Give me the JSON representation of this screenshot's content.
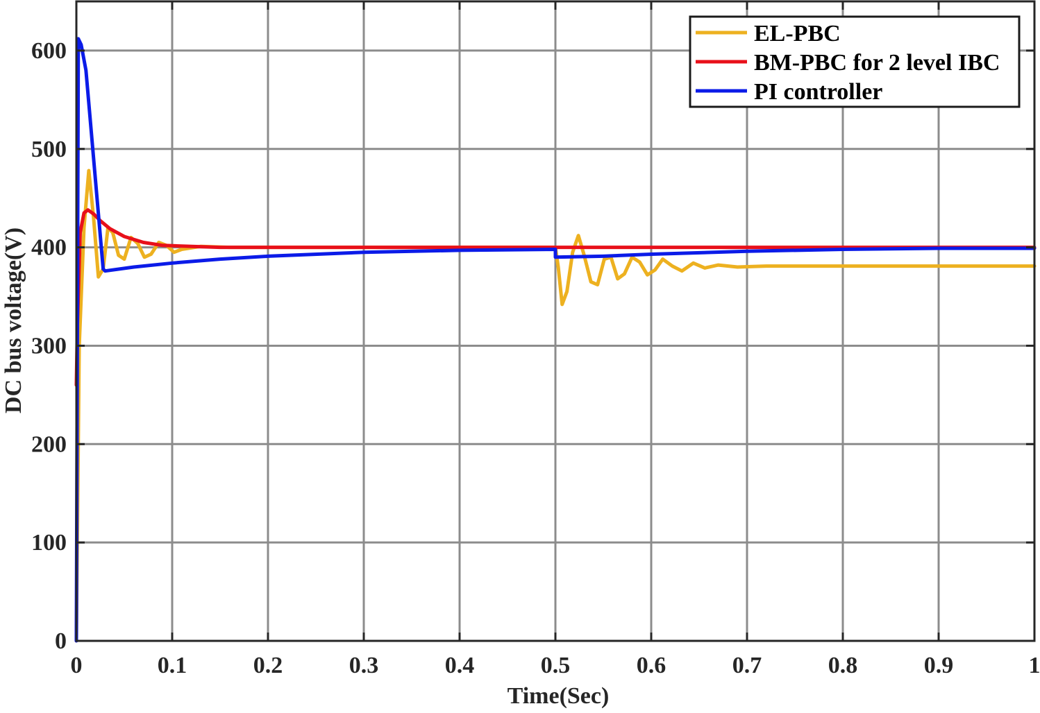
{
  "chart_data": {
    "type": "line",
    "xlabel": "Time(Sec)",
    "ylabel": "DC bus voltage(V)",
    "xlim": [
      0,
      1
    ],
    "ylim": [
      0,
      650
    ],
    "xticks": [
      0,
      0.1,
      0.2,
      0.3,
      0.4,
      0.5,
      0.6,
      0.7,
      0.8,
      0.9,
      1
    ],
    "xtick_labels": [
      "0",
      "0.1",
      "0.2",
      "0.3",
      "0.4",
      "0.5",
      "0.6",
      "0.7",
      "0.8",
      "0.9",
      "1"
    ],
    "yticks": [
      0,
      100,
      200,
      300,
      400,
      500,
      600
    ],
    "ytick_labels": [
      "0",
      "100",
      "200",
      "300",
      "400",
      "500",
      "600"
    ],
    "grid": true,
    "legend_position": "top-right",
    "series": [
      {
        "name": "EL-PBC",
        "color": "#EDB120",
        "x": [
          0,
          0.003,
          0.008,
          0.013,
          0.018,
          0.023,
          0.028,
          0.033,
          0.038,
          0.044,
          0.05,
          0.057,
          0.064,
          0.071,
          0.078,
          0.086,
          0.094,
          0.102,
          0.11,
          0.13,
          0.16,
          0.2,
          0.3,
          0.4,
          0.5,
          0.503,
          0.507,
          0.512,
          0.518,
          0.524,
          0.53,
          0.537,
          0.544,
          0.551,
          0.558,
          0.565,
          0.572,
          0.58,
          0.588,
          0.596,
          0.604,
          0.612,
          0.622,
          0.632,
          0.644,
          0.656,
          0.67,
          0.69,
          0.72,
          0.8,
          1
        ],
        "y": [
          0,
          300,
          420,
          478,
          430,
          370,
          378,
          420,
          415,
          392,
          388,
          410,
          404,
          390,
          393,
          405,
          402,
          395,
          398,
          401,
          400,
          400,
          400,
          400,
          400,
          380,
          342,
          355,
          395,
          412,
          392,
          365,
          362,
          388,
          390,
          368,
          373,
          390,
          385,
          372,
          377,
          388,
          381,
          376,
          384,
          379,
          382,
          380,
          381,
          381,
          381
        ]
      },
      {
        "name": "BM-PBC for 2 level IBC",
        "color": "#E8101A",
        "x": [
          0,
          0.001,
          0.004,
          0.008,
          0.012,
          0.018,
          0.025,
          0.035,
          0.05,
          0.07,
          0.09,
          0.12,
          0.15,
          0.2,
          0.3,
          0.4,
          0.5,
          0.6,
          0.7,
          0.8,
          0.9,
          1
        ],
        "y": [
          260,
          320,
          415,
          435,
          438,
          434,
          427,
          419,
          411,
          405,
          402,
          401,
          400,
          400,
          400,
          400,
          400,
          400,
          400,
          400,
          400,
          400
        ]
      },
      {
        "name": "PI controller",
        "color": "#0B1BE8",
        "x": [
          0,
          0.002,
          0.005,
          0.01,
          0.028,
          0.03,
          0.06,
          0.1,
          0.15,
          0.2,
          0.3,
          0.4,
          0.5,
          0.5,
          0.55,
          0.6,
          0.7,
          0.8,
          0.9,
          1
        ],
        "y": [
          0,
          612,
          606,
          580,
          378,
          376,
          380,
          384,
          388,
          391,
          395,
          397,
          398,
          390,
          391,
          393,
          396,
          398,
          399,
          399
        ]
      }
    ]
  }
}
